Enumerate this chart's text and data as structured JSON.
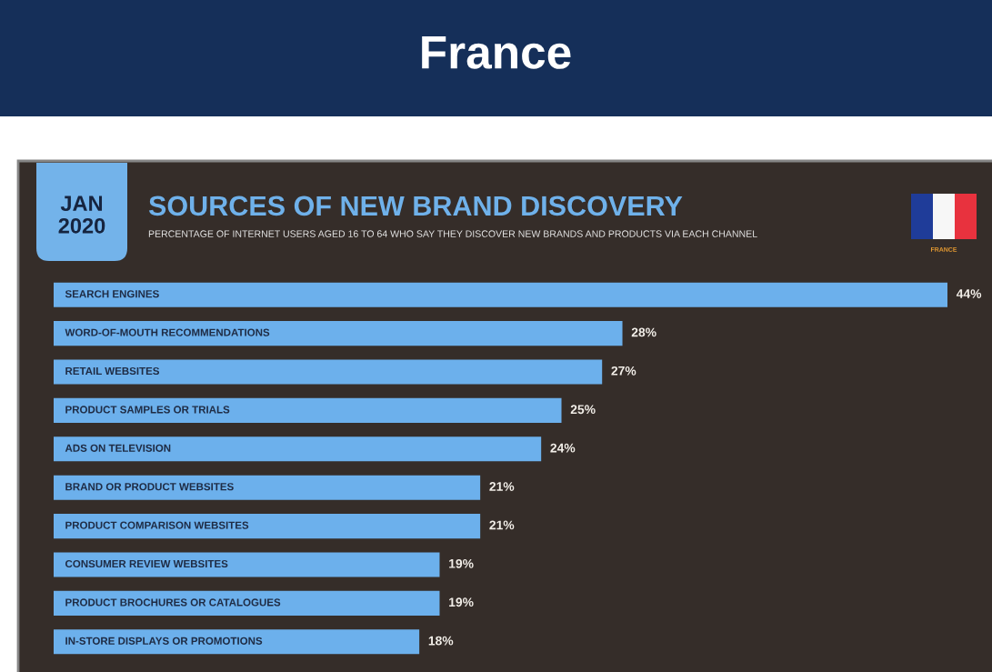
{
  "chart_data": {
    "type": "bar",
    "orientation": "horizontal",
    "title": "SOURCES OF NEW BRAND DISCOVERY",
    "subtitle": "PERCENTAGE OF INTERNET USERS AGED 16 TO 64 WHO SAY THEY DISCOVER NEW BRANDS AND PRODUCTS VIA EACH CHANNEL",
    "annotations": [
      "France",
      "JAN\n2020",
      "FRANCE"
    ],
    "categories": [
      "SEARCH ENGINES",
      "WORD-OF-MOUTH RECOMMENDATIONS",
      "RETAIL WEBSITES",
      "PRODUCT SAMPLES OR TRIALS",
      "ADS ON TELEVISION",
      "BRAND OR PRODUCT WEBSITES",
      "PRODUCT COMPARISON WEBSITES",
      "CONSUMER REVIEW WEBSITES",
      "PRODUCT BROCHURES OR CATALOGUES",
      "IN-STORE DISPLAYS OR PROMOTIONS"
    ],
    "values": [
      44,
      28,
      27,
      25,
      24,
      21,
      21,
      19,
      19,
      18
    ],
    "value_labels": [
      "44%",
      "28%",
      "27%",
      "25%",
      "24%",
      "21%",
      "21%",
      "19%",
      "19%",
      "18%"
    ],
    "color": "#6cb0ec"
  }
}
